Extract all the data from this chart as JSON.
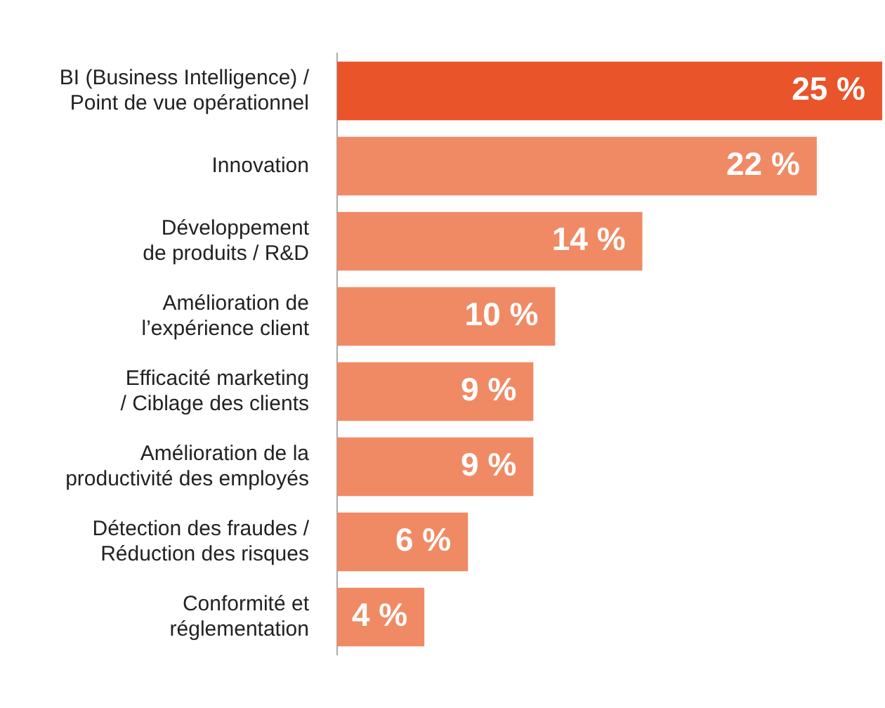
{
  "chart_data": {
    "type": "bar",
    "orientation": "horizontal",
    "categories": [
      "BI (Business Intelligence) / Point de vue opérationnel",
      "Innovation",
      "Développement de produits / R&D",
      "Amélioration de l’expérience client",
      "Efficacité marketing / Ciblage des clients",
      "Amélioration de la productivité des employés",
      "Détection des fraudes / Réduction des risques",
      "Conformité et réglementation"
    ],
    "values": [
      25,
      22,
      14,
      10,
      9,
      9,
      6,
      4
    ],
    "colors": [
      "#e9542b",
      "#f08a64",
      "#f08a64",
      "#f08a64",
      "#f08a64",
      "#f08a64",
      "#f08a64",
      "#f08a64"
    ],
    "value_labels": [
      "25 %",
      "22 %",
      "14 %",
      "10 %",
      "9 %",
      "9 %",
      "6 %",
      "4 %"
    ],
    "legend": false
  }
}
